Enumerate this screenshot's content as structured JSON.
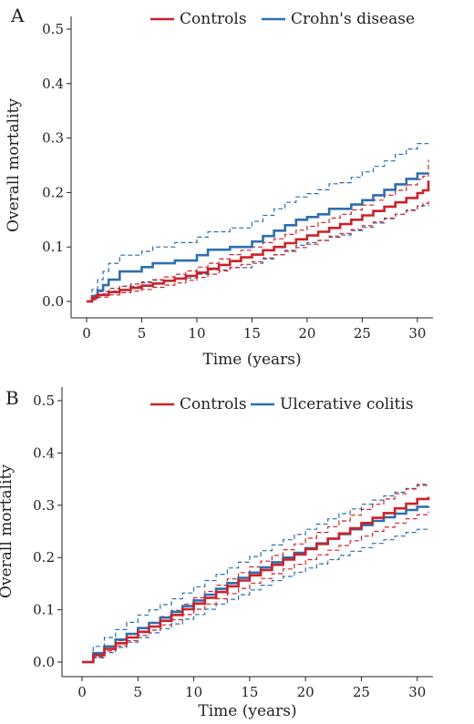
{
  "chart_data": [
    {
      "panel_label": "A",
      "type": "line",
      "xlabel": "Time (years)",
      "ylabel": "Overall mortality",
      "xlim": [
        0,
        31
      ],
      "ylim": [
        0,
        0.5
      ],
      "xticks": [
        0,
        5,
        10,
        15,
        20,
        25,
        30
      ],
      "yticks": [
        "0.0",
        "0.1",
        "0.2",
        "0.3",
        "0.4",
        "0.5"
      ],
      "legend": {
        "position": "top",
        "entries": [
          "Controls",
          "Crohn's disease"
        ]
      },
      "series": [
        {
          "name": "Controls",
          "color": "#cc2229",
          "x": [
            0,
            0.5,
            1,
            2,
            3,
            4,
            5,
            6,
            7,
            8,
            9,
            10,
            11,
            12,
            13,
            14,
            15,
            16,
            17,
            18,
            19,
            20,
            21,
            22,
            23,
            24,
            25,
            26,
            27,
            28,
            29,
            30,
            30.5,
            31
          ],
          "y": [
            0,
            0.007,
            0.012,
            0.017,
            0.021,
            0.025,
            0.029,
            0.033,
            0.038,
            0.042,
            0.047,
            0.053,
            0.06,
            0.067,
            0.074,
            0.081,
            0.086,
            0.094,
            0.1,
            0.107,
            0.114,
            0.121,
            0.128,
            0.135,
            0.142,
            0.15,
            0.158,
            0.166,
            0.174,
            0.182,
            0.19,
            0.199,
            0.204,
            0.222
          ],
          "lower": [
            0,
            0.004,
            0.008,
            0.012,
            0.016,
            0.019,
            0.022,
            0.026,
            0.03,
            0.034,
            0.039,
            0.044,
            0.05,
            0.056,
            0.062,
            0.068,
            0.073,
            0.08,
            0.086,
            0.092,
            0.099,
            0.105,
            0.112,
            0.118,
            0.125,
            0.132,
            0.139,
            0.146,
            0.153,
            0.16,
            0.167,
            0.175,
            0.18,
            0.186
          ],
          "upper": [
            0,
            0.012,
            0.018,
            0.024,
            0.028,
            0.032,
            0.036,
            0.04,
            0.045,
            0.05,
            0.056,
            0.063,
            0.07,
            0.078,
            0.086,
            0.094,
            0.1,
            0.108,
            0.115,
            0.123,
            0.131,
            0.138,
            0.145,
            0.153,
            0.16,
            0.168,
            0.177,
            0.186,
            0.195,
            0.204,
            0.214,
            0.224,
            0.23,
            0.26
          ]
        },
        {
          "name": "Crohn's disease",
          "color": "#2e6fad",
          "x": [
            0,
            0.5,
            1,
            1.5,
            2,
            3,
            5,
            6,
            8,
            10,
            11,
            13,
            15,
            16,
            17,
            18,
            19,
            20,
            21,
            22,
            23,
            24,
            25,
            26,
            27,
            28,
            29,
            30,
            31
          ],
          "y": [
            0,
            0.01,
            0.02,
            0.03,
            0.04,
            0.055,
            0.063,
            0.07,
            0.075,
            0.085,
            0.095,
            0.1,
            0.11,
            0.12,
            0.13,
            0.14,
            0.15,
            0.155,
            0.16,
            0.17,
            0.17,
            0.178,
            0.186,
            0.195,
            0.205,
            0.215,
            0.225,
            0.235,
            0.235
          ],
          "lower": [
            0,
            0.003,
            0.008,
            0.014,
            0.019,
            0.028,
            0.034,
            0.039,
            0.043,
            0.05,
            0.058,
            0.062,
            0.07,
            0.078,
            0.086,
            0.094,
            0.103,
            0.108,
            0.112,
            0.12,
            0.122,
            0.13,
            0.136,
            0.144,
            0.152,
            0.16,
            0.168,
            0.176,
            0.178
          ],
          "upper": [
            0,
            0.022,
            0.04,
            0.055,
            0.07,
            0.085,
            0.092,
            0.1,
            0.108,
            0.118,
            0.128,
            0.135,
            0.147,
            0.158,
            0.17,
            0.182,
            0.192,
            0.198,
            0.205,
            0.216,
            0.218,
            0.228,
            0.238,
            0.248,
            0.258,
            0.27,
            0.28,
            0.29,
            0.29
          ]
        }
      ]
    },
    {
      "panel_label": "B",
      "type": "line",
      "xlabel": "Time (years)",
      "ylabel": "Overall mortality",
      "xlim": [
        0,
        31
      ],
      "ylim": [
        0,
        0.5
      ],
      "xticks": [
        0,
        5,
        10,
        15,
        20,
        25,
        30
      ],
      "yticks": [
        "0.0",
        "0.1",
        "0.2",
        "0.3",
        "0.4",
        "0.5"
      ],
      "legend": {
        "position": "top",
        "entries": [
          "Controls",
          "Ulcerative colitis"
        ]
      },
      "series": [
        {
          "name": "Controls",
          "color": "#cc2229",
          "x": [
            0,
            1,
            2,
            3,
            4,
            5,
            6,
            7,
            8,
            9,
            10,
            11,
            12,
            13,
            14,
            15,
            16,
            17,
            18,
            19,
            20,
            21,
            22,
            23,
            24,
            25,
            26,
            27,
            28,
            29,
            30,
            31
          ],
          "y": [
            0,
            0.013,
            0.025,
            0.036,
            0.047,
            0.058,
            0.068,
            0.079,
            0.09,
            0.101,
            0.112,
            0.123,
            0.134,
            0.145,
            0.156,
            0.166,
            0.176,
            0.186,
            0.196,
            0.206,
            0.216,
            0.226,
            0.236,
            0.246,
            0.256,
            0.266,
            0.276,
            0.285,
            0.294,
            0.303,
            0.312,
            0.316
          ],
          "lower": [
            0,
            0.01,
            0.021,
            0.031,
            0.041,
            0.051,
            0.061,
            0.071,
            0.081,
            0.091,
            0.101,
            0.111,
            0.121,
            0.131,
            0.141,
            0.151,
            0.16,
            0.169,
            0.178,
            0.187,
            0.196,
            0.205,
            0.214,
            0.223,
            0.232,
            0.241,
            0.25,
            0.258,
            0.266,
            0.274,
            0.282,
            0.288
          ],
          "upper": [
            0,
            0.016,
            0.029,
            0.041,
            0.053,
            0.065,
            0.076,
            0.087,
            0.099,
            0.111,
            0.123,
            0.135,
            0.147,
            0.159,
            0.171,
            0.182,
            0.193,
            0.204,
            0.215,
            0.226,
            0.237,
            0.248,
            0.259,
            0.27,
            0.281,
            0.292,
            0.302,
            0.312,
            0.322,
            0.331,
            0.34,
            0.342
          ]
        },
        {
          "name": "Ulcerative colitis",
          "color": "#2e6fad",
          "x": [
            0,
            1,
            2,
            3,
            4,
            5,
            6,
            7,
            8,
            9,
            10,
            11,
            12,
            13,
            14,
            15,
            16,
            17,
            18,
            19,
            20,
            21,
            22,
            23,
            24,
            25,
            26,
            27,
            28,
            29,
            30,
            31
          ],
          "y": [
            0,
            0.017,
            0.03,
            0.043,
            0.054,
            0.065,
            0.075,
            0.085,
            0.096,
            0.107,
            0.118,
            0.129,
            0.14,
            0.151,
            0.161,
            0.171,
            0.181,
            0.191,
            0.2,
            0.209,
            0.218,
            0.227,
            0.236,
            0.245,
            0.254,
            0.262,
            0.27,
            0.277,
            0.284,
            0.291,
            0.297,
            0.298
          ],
          "lower": [
            0,
            0.008,
            0.018,
            0.028,
            0.038,
            0.047,
            0.056,
            0.064,
            0.073,
            0.082,
            0.091,
            0.101,
            0.111,
            0.12,
            0.129,
            0.138,
            0.147,
            0.156,
            0.164,
            0.172,
            0.18,
            0.188,
            0.196,
            0.204,
            0.212,
            0.219,
            0.227,
            0.234,
            0.241,
            0.248,
            0.254,
            0.256
          ],
          "upper": [
            0,
            0.03,
            0.047,
            0.062,
            0.076,
            0.09,
            0.1,
            0.11,
            0.121,
            0.132,
            0.144,
            0.156,
            0.168,
            0.18,
            0.191,
            0.202,
            0.213,
            0.224,
            0.234,
            0.244,
            0.254,
            0.264,
            0.274,
            0.284,
            0.293,
            0.302,
            0.31,
            0.318,
            0.325,
            0.332,
            0.338,
            0.34
          ]
        }
      ]
    }
  ]
}
